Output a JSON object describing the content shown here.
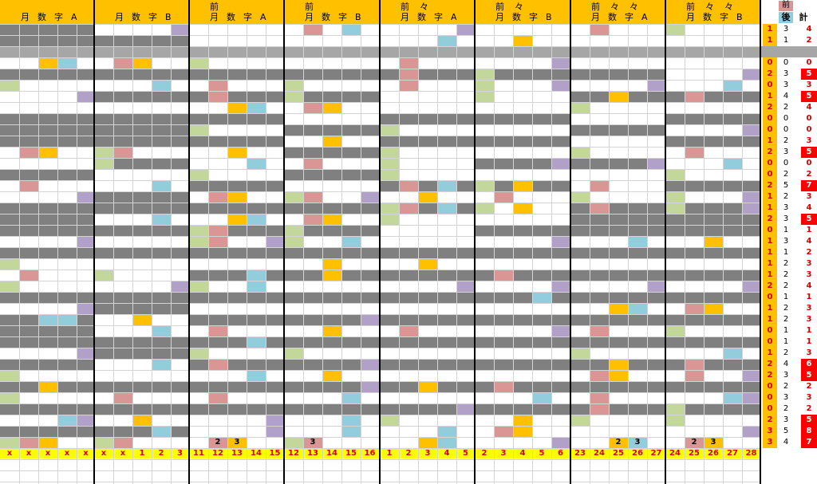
{
  "colors": {
    "header": "#ffc000",
    "gray": "#808080",
    "lightgray": "#a6a6a6",
    "pink": "#da9694",
    "orange": "#ffc000",
    "blue": "#92cddc",
    "green": "#c4d79b",
    "purple": "#b1a0c7",
    "red": "#ff0000",
    "bottom_bar": "#ffff00"
  },
  "groups": [
    {
      "top": [
        "",
        "",
        "",
        ""
      ],
      "bottom": [
        "月",
        "数",
        "字",
        "A"
      ],
      "footer": [
        "x",
        "x",
        "x",
        "x",
        "x"
      ]
    },
    {
      "top": [
        "",
        "",
        "",
        ""
      ],
      "bottom": [
        "月",
        "数",
        "字",
        "B"
      ],
      "footer": [
        "x",
        "x",
        "1",
        "2",
        "3"
      ]
    },
    {
      "top": [
        "前",
        "",
        "",
        ""
      ],
      "bottom": [
        "月",
        "数",
        "字",
        "A"
      ],
      "footer": [
        "11",
        "12",
        "13",
        "14",
        "15"
      ]
    },
    {
      "top": [
        "前",
        "",
        "",
        ""
      ],
      "bottom": [
        "月",
        "数",
        "字",
        "B"
      ],
      "footer": [
        "12",
        "13",
        "14",
        "15",
        "16"
      ]
    },
    {
      "top": [
        "前",
        "々",
        "",
        ""
      ],
      "bottom": [
        "月",
        "数",
        "字",
        "A"
      ],
      "footer": [
        "1",
        "2",
        "3",
        "4",
        "5"
      ]
    },
    {
      "top": [
        "前",
        "々",
        "",
        ""
      ],
      "bottom": [
        "月",
        "数",
        "字",
        "B"
      ],
      "footer": [
        "2",
        "3",
        "4",
        "5",
        "6"
      ]
    },
    {
      "top": [
        "前",
        "々",
        "々",
        ""
      ],
      "bottom": [
        "月",
        "数",
        "字",
        "A"
      ],
      "footer": [
        "23",
        "24",
        "25",
        "26",
        "27"
      ]
    },
    {
      "top": [
        "前",
        "々",
        "々",
        ""
      ],
      "bottom": [
        "月",
        "数",
        "字",
        "B"
      ],
      "footer": [
        "24",
        "25",
        "26",
        "27",
        "28"
      ]
    }
  ],
  "group_overlays": [
    [],
    [],
    [
      {
        "col": 1,
        "text": "2"
      },
      {
        "col": 2,
        "text": "3"
      }
    ],
    [
      {
        "col": 1,
        "text": "3"
      }
    ],
    [],
    [],
    [
      {
        "col": 2,
        "text": "2"
      },
      {
        "col": 3,
        "text": "3"
      }
    ],
    [
      {
        "col": 1,
        "text": "2"
      },
      {
        "col": 2,
        "text": "3"
      }
    ]
  ],
  "summary": {
    "header_top": "前",
    "header_labels": [
      "後",
      "計"
    ],
    "rows": [
      [
        "1",
        "3",
        "4"
      ],
      [
        "1",
        "1",
        "2"
      ],
      [
        "",
        "",
        ""
      ],
      [
        "0",
        "0",
        "0"
      ],
      [
        "2",
        "3",
        "5"
      ],
      [
        "0",
        "3",
        "3"
      ],
      [
        "1",
        "4",
        "5"
      ],
      [
        "2",
        "2",
        "4"
      ],
      [
        "0",
        "0",
        "0"
      ],
      [
        "0",
        "0",
        "0"
      ],
      [
        "1",
        "2",
        "3"
      ],
      [
        "2",
        "3",
        "5"
      ],
      [
        "0",
        "0",
        "0"
      ],
      [
        "0",
        "2",
        "2"
      ],
      [
        "2",
        "5",
        "7"
      ],
      [
        "1",
        "2",
        "3"
      ],
      [
        "1",
        "3",
        "4"
      ],
      [
        "2",
        "3",
        "5"
      ],
      [
        "0",
        "1",
        "1"
      ],
      [
        "1",
        "3",
        "4"
      ],
      [
        "1",
        "1",
        "2"
      ],
      [
        "1",
        "2",
        "3"
      ],
      [
        "1",
        "2",
        "3"
      ],
      [
        "2",
        "2",
        "4"
      ],
      [
        "0",
        "1",
        "1"
      ],
      [
        "1",
        "2",
        "3"
      ],
      [
        "1",
        "2",
        "3"
      ],
      [
        "0",
        "1",
        "1"
      ],
      [
        "0",
        "1",
        "1"
      ],
      [
        "1",
        "2",
        "3"
      ],
      [
        "2",
        "4",
        "6"
      ],
      [
        "2",
        "3",
        "5"
      ],
      [
        "0",
        "2",
        "2"
      ],
      [
        "0",
        "3",
        "3"
      ],
      [
        "0",
        "2",
        "2"
      ],
      [
        "2",
        "3",
        "5"
      ],
      [
        "3",
        "5",
        "8"
      ],
      [
        "3",
        "4",
        "7"
      ]
    ]
  }
}
